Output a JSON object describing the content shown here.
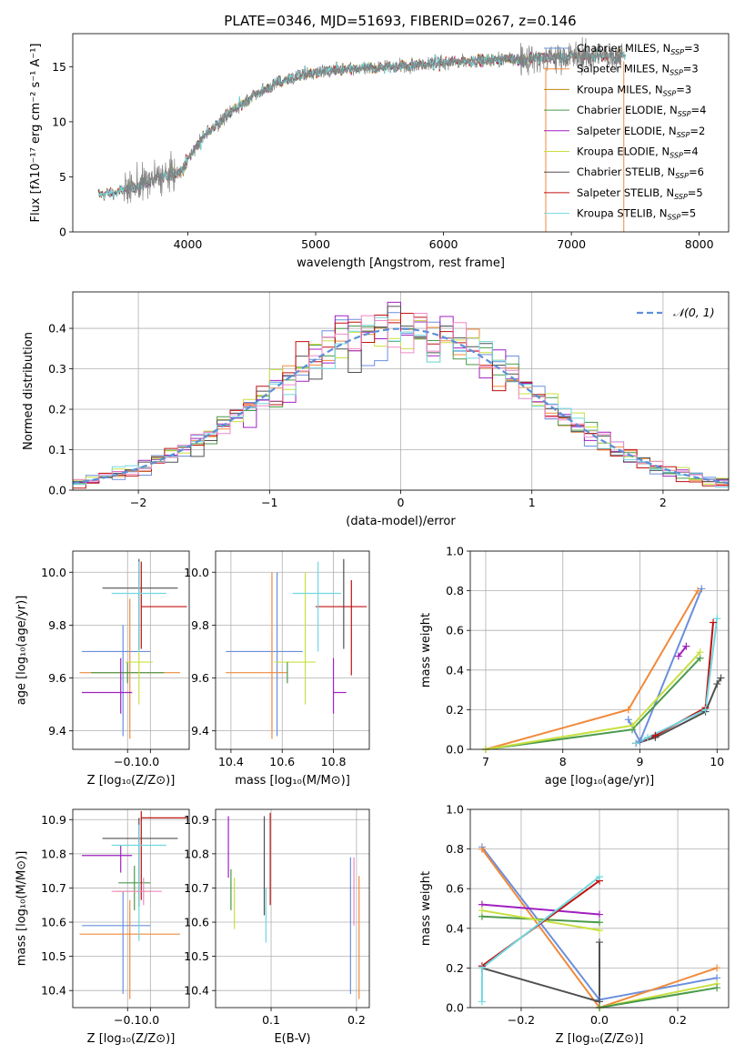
{
  "figure_title": "PLATE=0346, MJD=51693, FIBERID=0267, z=0.146",
  "colors": {
    "Chabrier MILES": "#6a8fdc",
    "Salpeter MILES": "#f08a3c",
    "Kroupa MILES": "#b8860b",
    "Chabrier ELODIE": "#4a9a4a",
    "Salpeter ELODIE": "#a020c0",
    "Kroupa ELODIE": "#c8e040",
    "Chabrier STELIB": "#505050",
    "Salpeter STELIB": "#c01010",
    "Kroupa STELIB": "#70d8e0",
    "data": "#808080",
    "normal_curve": "#5b8fd9",
    "pink": "#f088c8"
  },
  "chart_data": [
    {
      "id": "spectrum",
      "type": "line",
      "xlabel": "wavelength [Angstrom, rest frame]",
      "ylabel": "Flux [fλ10⁻¹⁷ erg cm⁻² s⁻¹ A⁻¹]",
      "xlim": [
        3100,
        8230
      ],
      "ylim": [
        0,
        18
      ],
      "xticks": [
        4000,
        5000,
        6000,
        7000,
        8000
      ],
      "yticks": [
        0,
        5,
        10,
        15
      ],
      "grid": false,
      "legend_position": "top-right",
      "legend": [
        {
          "model": "Chabrier MILES",
          "label": "Chabrier MILES, N",
          "sub": "SSP",
          "suffix": "=3"
        },
        {
          "model": "Salpeter MILES",
          "label": "Salpeter MILES, N",
          "sub": "SSP",
          "suffix": "=3"
        },
        {
          "model": "Kroupa MILES",
          "label": "Kroupa MILES, N",
          "sub": "SSP",
          "suffix": "=3"
        },
        {
          "model": "Chabrier ELODIE",
          "label": "Chabrier ELODIE, N",
          "sub": "SSP",
          "suffix": "=4"
        },
        {
          "model": "Salpeter ELODIE",
          "label": "Salpeter ELODIE, N",
          "sub": "SSP",
          "suffix": "=2"
        },
        {
          "model": "Kroupa ELODIE",
          "label": "Kroupa ELODIE, N",
          "sub": "SSP",
          "suffix": "=4"
        },
        {
          "model": "Chabrier STELIB",
          "label": "Chabrier STELIB, N",
          "sub": "SSP",
          "suffix": "=6"
        },
        {
          "model": "Salpeter STELIB",
          "label": "Salpeter STELIB, N",
          "sub": "SSP",
          "suffix": "=5"
        },
        {
          "model": "Kroupa STELIB",
          "label": "Kroupa STELIB, N",
          "sub": "SSP",
          "suffix": "=5"
        }
      ],
      "continuum": [
        [
          3300,
          3.4
        ],
        [
          3450,
          3.6
        ],
        [
          3600,
          4.2
        ],
        [
          3800,
          5.0
        ],
        [
          3950,
          5.5
        ],
        [
          4050,
          7.5
        ],
        [
          4150,
          9.0
        ],
        [
          4300,
          10.5
        ],
        [
          4500,
          12.3
        ],
        [
          4700,
          13.5
        ],
        [
          4900,
          14.3
        ],
        [
          5100,
          14.6
        ],
        [
          5300,
          14.8
        ],
        [
          5600,
          15.0
        ],
        [
          5900,
          15.3
        ],
        [
          6200,
          15.5
        ],
        [
          6500,
          15.7
        ],
        [
          6800,
          15.8
        ],
        [
          7200,
          16.0
        ],
        [
          7420,
          16.0
        ]
      ],
      "data_range": [
        3500,
        7400
      ],
      "model_range": [
        3300,
        7420
      ]
    },
    {
      "id": "residuals",
      "type": "histogram",
      "xlabel": "(data-model)/error",
      "ylabel": "Normed distribution",
      "xlim": [
        -2.5,
        2.5
      ],
      "ylim": [
        0,
        0.49
      ],
      "xticks": [
        -2,
        -1,
        0,
        1,
        2
      ],
      "yticks": [
        0.0,
        0.1,
        0.2,
        0.3,
        0.4
      ],
      "grid": true,
      "legend_position": "top-right",
      "curve_label": "𝒩(0, 1)",
      "bin_width": 0.1,
      "bin_start": -2.5
    },
    {
      "id": "age_vs_Z",
      "type": "errorbar",
      "xlabel": "Z [log₁₀(Z/Z⊙)]",
      "ylabel": "age  [log₁₀(age/yr)]",
      "xlim": [
        -0.34,
        0.17
      ],
      "ylim": [
        9.33,
        10.08
      ],
      "xticks": [
        -0.1,
        0.0
      ],
      "yticks": [
        9.4,
        9.6,
        9.8,
        10.0
      ],
      "grid": true,
      "points": [
        {
          "model": "Chabrier MILES",
          "x": -0.12,
          "xerr": [
            0.18,
            0.12
          ],
          "y": 9.7,
          "yerr": [
            0.32,
            0.1
          ]
        },
        {
          "model": "Salpeter MILES",
          "x": -0.09,
          "xerr": [
            0.22,
            0.22
          ],
          "y": 9.62,
          "yerr": [
            0.25,
            0.28
          ]
        },
        {
          "model": "Chabrier ELODIE",
          "x": -0.1,
          "xerr": [
            0.16,
            0.16
          ],
          "y": 9.62,
          "yerr": [
            0.04,
            0.04
          ]
        },
        {
          "model": "Salpeter ELODIE",
          "x": -0.13,
          "xerr": [
            0.17,
            0.05
          ],
          "y": 9.545,
          "yerr": [
            0.08,
            0.13
          ]
        },
        {
          "model": "Kroupa ELODIE",
          "x": -0.05,
          "xerr": [
            0.06,
            0.06
          ],
          "y": 9.66,
          "yerr": [
            0.16,
            0.11
          ]
        },
        {
          "model": "Chabrier STELIB",
          "x": -0.05,
          "xerr": [
            0.16,
            0.17
          ],
          "y": 9.94,
          "yerr": [
            0.23,
            0.11
          ]
        },
        {
          "model": "Salpeter STELIB",
          "x": -0.04,
          "xerr": [
            0.0,
            0.2
          ],
          "y": 9.87,
          "yerr": [
            0.16,
            0.17
          ]
        },
        {
          "model": "Kroupa STELIB",
          "x": -0.05,
          "xerr": [
            0.12,
            0.12
          ],
          "y": 9.92,
          "yerr": [
            0.22,
            0.12
          ]
        }
      ]
    },
    {
      "id": "age_vs_mass",
      "type": "errorbar",
      "xlabel": "mass [log₁₀(M/M⊙)]",
      "ylabel": "",
      "xlim": [
        10.34,
        10.94
      ],
      "ylim": [
        9.33,
        10.08
      ],
      "xticks": [
        10.4,
        10.6,
        10.8
      ],
      "yticks": [
        9.4,
        9.6,
        9.8,
        10.0
      ],
      "grid": true,
      "points": [
        {
          "model": "Chabrier MILES",
          "x": 10.58,
          "xerr": [
            0.2,
            0.1
          ],
          "y": 9.7,
          "yerr": [
            0.32,
            0.3
          ]
        },
        {
          "model": "Salpeter MILES",
          "x": 10.56,
          "xerr": [
            0.18,
            0.06
          ],
          "y": 9.62,
          "yerr": [
            0.25,
            0.38
          ]
        },
        {
          "model": "Kroupa ELODIE",
          "x": 10.69,
          "xerr": [
            0.12,
            0.04
          ],
          "y": 9.66,
          "yerr": [
            0.16,
            0.34
          ]
        },
        {
          "model": "Salpeter ELODIE",
          "x": 10.8,
          "xerr": [
            0.0,
            0.05
          ],
          "y": 9.545,
          "yerr": [
            0.08,
            0.13
          ]
        },
        {
          "model": "Chabrier STELIB",
          "x": 10.84,
          "xerr": [
            0.0,
            0.0
          ],
          "y": 9.94,
          "yerr": [
            0.23,
            0.11
          ]
        },
        {
          "model": "Salpeter STELIB",
          "x": 10.87,
          "xerr": [
            0.14,
            0.06
          ],
          "y": 9.87,
          "yerr": [
            0.26,
            0.1
          ]
        },
        {
          "model": "Kroupa STELIB",
          "x": 10.74,
          "xerr": [
            0.1,
            0.09
          ],
          "y": 9.92,
          "yerr": [
            0.22,
            0.12
          ]
        },
        {
          "model": "Chabrier ELODIE",
          "x": 10.62,
          "xerr": [
            0.0,
            0.0
          ],
          "y": 9.62,
          "yerr": [
            0.04,
            0.04
          ]
        }
      ]
    },
    {
      "id": "weight_vs_age",
      "type": "line",
      "xlabel": "age  [log₁₀(age/yr)]",
      "ylabel": "mass weight",
      "xlim": [
        6.8,
        10.15
      ],
      "ylim": [
        0,
        1.0
      ],
      "xticks": [
        7,
        8,
        9,
        10
      ],
      "yticks": [
        0.0,
        0.2,
        0.4,
        0.6,
        0.8,
        1.0
      ],
      "grid": true,
      "series": [
        {
          "model": "Chabrier MILES",
          "points": [
            [
              8.85,
              0.15
            ],
            [
              9.0,
              0.04
            ],
            [
              9.8,
              0.81
            ]
          ]
        },
        {
          "model": "Salpeter MILES",
          "points": [
            [
              7.0,
              0.0
            ],
            [
              8.85,
              0.2
            ],
            [
              9.75,
              0.8
            ]
          ]
        },
        {
          "model": "Chabrier ELODIE",
          "points": [
            [
              7.0,
              0.0
            ],
            [
              8.9,
              0.1
            ],
            [
              9.78,
              0.46
            ]
          ]
        },
        {
          "model": "Salpeter ELODIE",
          "points": [
            [
              9.5,
              0.47
            ],
            [
              9.6,
              0.52
            ]
          ]
        },
        {
          "model": "Kroupa ELODIE",
          "points": [
            [
              7.0,
              0.0
            ],
            [
              8.9,
              0.12
            ],
            [
              9.78,
              0.49
            ]
          ]
        },
        {
          "model": "Chabrier STELIB",
          "points": [
            [
              8.95,
              0.03
            ],
            [
              9.2,
              0.06
            ],
            [
              9.85,
              0.19
            ],
            [
              10.0,
              0.33
            ],
            [
              10.05,
              0.36
            ]
          ]
        },
        {
          "model": "Salpeter STELIB",
          "points": [
            [
              8.95,
              0.03
            ],
            [
              9.2,
              0.07
            ],
            [
              9.85,
              0.21
            ],
            [
              9.95,
              0.64
            ]
          ]
        },
        {
          "model": "Kroupa STELIB",
          "points": [
            [
              8.95,
              0.03
            ],
            [
              9.1,
              0.06
            ],
            [
              9.85,
              0.2
            ],
            [
              10.0,
              0.66
            ]
          ]
        }
      ]
    },
    {
      "id": "mass_vs_Z",
      "type": "errorbar",
      "xlabel": "Z [log₁₀(Z/Z⊙)]",
      "ylabel": "mass [log₁₀(M/M⊙)]",
      "xlim": [
        -0.34,
        0.17
      ],
      "ylim": [
        10.35,
        10.93
      ],
      "xticks": [
        -0.1,
        0.0
      ],
      "yticks": [
        10.4,
        10.5,
        10.6,
        10.7,
        10.8,
        10.9
      ],
      "grid": true,
      "points": [
        {
          "model": "Chabrier MILES",
          "x": -0.12,
          "xerr": [
            0.18,
            0.12
          ],
          "y": 10.59,
          "yerr": [
            0.2,
            0.1
          ]
        },
        {
          "model": "Salpeter MILES",
          "x": -0.09,
          "xerr": [
            0.22,
            0.22
          ],
          "y": 10.565,
          "yerr": [
            0.19,
            0.1
          ]
        },
        {
          "model": "Chabrier ELODIE",
          "x": -0.07,
          "xerr": [
            0.07,
            0.07
          ],
          "y": 10.715,
          "yerr": [
            0.08,
            0.05
          ]
        },
        {
          "model": "Salpeter ELODIE",
          "x": -0.13,
          "xerr": [
            0.17,
            0.05
          ],
          "y": 10.795,
          "yerr": [
            0.05,
            0.03
          ]
        },
        {
          "model": "Kroupa ELODIE",
          "x": -0.05,
          "xerr": [
            0.1,
            0.06
          ],
          "y": 10.69,
          "yerr": [
            0.04,
            0.04
          ]
        },
        {
          "model": "Chabrier STELIB",
          "x": -0.05,
          "xerr": [
            0.16,
            0.17
          ],
          "y": 10.845,
          "yerr": [
            0.2,
            0.06
          ]
        },
        {
          "model": "Salpeter STELIB",
          "x": -0.04,
          "xerr": [
            0.0,
            0.2
          ],
          "y": 10.905,
          "yerr": [
            0.24,
            0.02
          ]
        },
        {
          "model": "Kroupa STELIB",
          "x": -0.05,
          "xerr": [
            0.12,
            0.12
          ],
          "y": 10.825,
          "yerr": [
            0.28,
            0.06
          ]
        },
        {
          "model": "pink",
          "x": -0.03,
          "xerr": [
            0.14,
            0.08
          ],
          "y": 10.69,
          "yerr": [
            0.04,
            0.04
          ]
        }
      ]
    },
    {
      "id": "mass_vs_EBV",
      "type": "errorbar",
      "xlabel": "E(B-V)",
      "ylabel": "",
      "xlim": [
        0.035,
        0.215
      ],
      "ylim": [
        10.35,
        10.93
      ],
      "xticks": [
        0.1,
        0.2
      ],
      "yticks": [
        10.4,
        10.5,
        10.6,
        10.7,
        10.8,
        10.9
      ],
      "grid": true,
      "points": [
        {
          "model": "Salpeter ELODIE",
          "x": 0.05,
          "y": 10.79,
          "yerr": [
            0.06,
            0.12
          ]
        },
        {
          "model": "Chabrier ELODIE",
          "x": 0.053,
          "y": 10.705,
          "yerr": [
            0.07,
            0.05
          ]
        },
        {
          "model": "Kroupa ELODIE",
          "x": 0.057,
          "y": 10.67,
          "yerr": [
            0.09,
            0.06
          ]
        },
        {
          "model": "Chabrier STELIB",
          "x": 0.092,
          "y": 10.77,
          "yerr": [
            0.15,
            0.14
          ]
        },
        {
          "model": "Kroupa STELIB",
          "x": 0.094,
          "y": 10.62,
          "yerr": [
            0.08,
            0.08
          ]
        },
        {
          "model": "Salpeter STELIB",
          "x": 0.099,
          "y": 10.85,
          "yerr": [
            0.2,
            0.07
          ]
        },
        {
          "model": "Chabrier MILES",
          "x": 0.193,
          "y": 10.59,
          "yerr": [
            0.2,
            0.2
          ]
        },
        {
          "model": "Salpeter MILES",
          "x": 0.203,
          "y": 10.565,
          "yerr": [
            0.19,
            0.17
          ]
        },
        {
          "model": "pink",
          "x": 0.197,
          "y": 10.69,
          "yerr": [
            0.1,
            0.1
          ]
        }
      ]
    },
    {
      "id": "weight_vs_Z",
      "type": "line",
      "xlabel": "Z [log₁₀(Z/Z⊙)]",
      "ylabel": "mass weight",
      "xlim": [
        -0.33,
        0.33
      ],
      "ylim": [
        0,
        1.0
      ],
      "xticks": [
        -0.2,
        0.0,
        0.2
      ],
      "yticks": [
        0.0,
        0.2,
        0.4,
        0.6,
        0.8,
        1.0
      ],
      "grid": true,
      "series": [
        {
          "model": "Chabrier MILES",
          "points": [
            [
              -0.3,
              0.81
            ],
            [
              0.0,
              0.04
            ],
            [
              0.3,
              0.15
            ]
          ]
        },
        {
          "model": "Salpeter MILES",
          "points": [
            [
              -0.3,
              0.8
            ],
            [
              0.0,
              0.0
            ],
            [
              0.3,
              0.2
            ]
          ]
        },
        {
          "model": "Chabrier ELODIE",
          "points": [
            [
              -0.3,
              0.46
            ],
            [
              0.0,
              0.43
            ]
          ]
        },
        {
          "model": "Salpeter ELODIE",
          "points": [
            [
              -0.3,
              0.52
            ],
            [
              0.0,
              0.47
            ]
          ]
        },
        {
          "model": "Kroupa ELODIE",
          "points": [
            [
              -0.3,
              0.49
            ],
            [
              0.0,
              0.39
            ]
          ]
        },
        {
          "model": "Chabrier STELIB",
          "points": [
            [
              -0.3,
              0.2
            ],
            [
              0.0,
              0.03
            ],
            [
              0.0,
              0.33
            ]
          ]
        },
        {
          "model": "Salpeter STELIB",
          "points": [
            [
              -0.3,
              0.21
            ],
            [
              0.0,
              0.64
            ]
          ]
        },
        {
          "model": "Kroupa STELIB",
          "points": [
            [
              -0.3,
              0.03
            ],
            [
              -0.3,
              0.2
            ],
            [
              0.0,
              0.66
            ]
          ]
        },
        {
          "model": "Kroupa ELODIE",
          "points": [
            [
              0.0,
              0.0
            ],
            [
              0.3,
              0.12
            ]
          ]
        },
        {
          "model": "Chabrier ELODIE",
          "points": [
            [
              0.0,
              0.0
            ],
            [
              0.3,
              0.1
            ]
          ]
        }
      ]
    }
  ]
}
